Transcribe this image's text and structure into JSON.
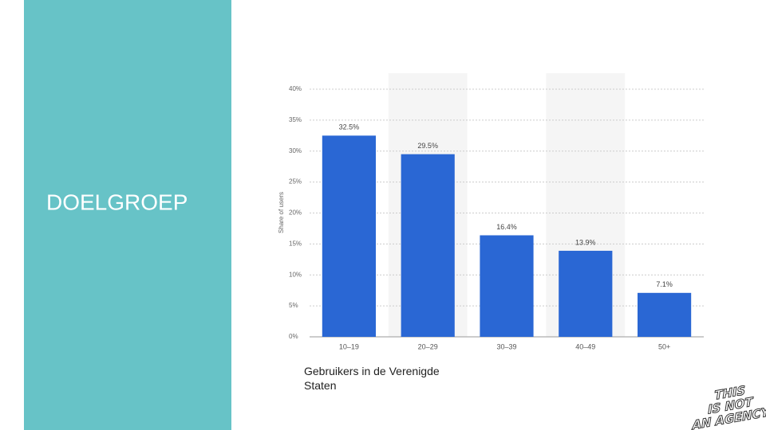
{
  "heading": "DOELGROEP",
  "caption": "Gebruikers in de Verenigde Staten",
  "logo": [
    "THIS",
    "IS NOT",
    "AN AGENCY"
  ],
  "chart_data": {
    "type": "bar",
    "y_label": "Share of users",
    "categories": [
      "10–19",
      "20–29",
      "30–39",
      "40–49",
      "50+"
    ],
    "values": [
      32.5,
      29.5,
      16.4,
      13.9,
      7.1
    ],
    "value_labels": [
      "32.5%",
      "29.5%",
      "16.4%",
      "13.9%",
      "7.1%"
    ],
    "color": "#2a67d4",
    "ylim": [
      0,
      40
    ],
    "yticks": [
      {
        "value": 0,
        "label": "0%"
      },
      {
        "value": 5,
        "label": "5%"
      },
      {
        "value": 10,
        "label": "10%"
      },
      {
        "value": 15,
        "label": "15%"
      },
      {
        "value": 20,
        "label": "20%"
      },
      {
        "value": 25,
        "label": "25%"
      },
      {
        "value": 30,
        "label": "30%"
      },
      {
        "value": 35,
        "label": "35%"
      },
      {
        "value": 40,
        "label": "40%"
      }
    ],
    "grid": true
  }
}
